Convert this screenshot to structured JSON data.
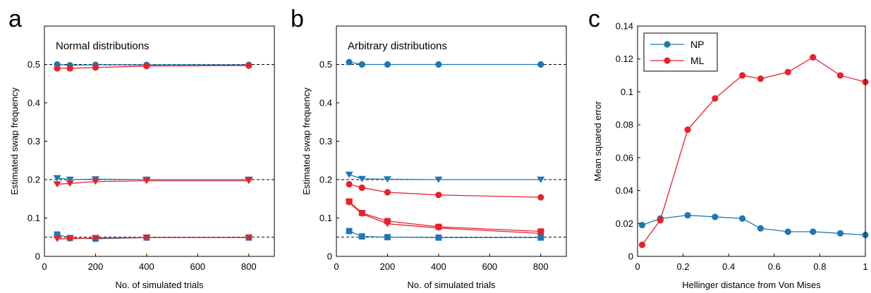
{
  "colors": {
    "np": "#1f77b4",
    "ml": "#e8212b",
    "reference": "#000000",
    "frame": "#000000"
  },
  "chart_data": [
    {
      "type": "line",
      "panel_label": "a",
      "title": "Normal distributions",
      "xlabel": "No. of simulated trials",
      "ylabel": "Estimated swap frequency",
      "xlim": [
        0,
        900
      ],
      "ylim": [
        0,
        0.6
      ],
      "xticks": [
        0,
        200,
        400,
        600,
        800
      ],
      "xtick_labels": [
        "0",
        "200",
        "400",
        "600",
        "800"
      ],
      "yticks": [
        0,
        0.1,
        0.2,
        0.3,
        0.4,
        0.5
      ],
      "ytick_labels": [
        "0",
        "0.1",
        "0.2",
        "0.3",
        "0.4",
        "0.5"
      ],
      "reference_lines": [
        0.5,
        0.2,
        0.05
      ],
      "series": [
        {
          "color": "np",
          "marker": "circle",
          "x": [
            50,
            100,
            200,
            400,
            800
          ],
          "y": [
            0.5,
            0.498,
            0.499,
            0.499,
            0.499
          ]
        },
        {
          "color": "ml",
          "marker": "circle",
          "x": [
            50,
            100,
            200,
            400,
            800
          ],
          "y": [
            0.49,
            0.49,
            0.492,
            0.496,
            0.497
          ]
        },
        {
          "color": "np",
          "marker": "triangle",
          "x": [
            50,
            100,
            200,
            400,
            800
          ],
          "y": [
            0.204,
            0.2,
            0.201,
            0.2,
            0.2
          ]
        },
        {
          "color": "ml",
          "marker": "triangle",
          "x": [
            50,
            100,
            200,
            400,
            800
          ],
          "y": [
            0.188,
            0.19,
            0.195,
            0.197,
            0.197
          ]
        },
        {
          "color": "np",
          "marker": "square",
          "x": [
            50,
            100,
            200,
            400,
            800
          ],
          "y": [
            0.057,
            0.048,
            0.046,
            0.049,
            0.049
          ]
        },
        {
          "color": "ml",
          "marker": "triangle",
          "x": [
            50,
            100,
            200,
            400,
            800
          ],
          "y": [
            0.046,
            0.046,
            0.048,
            0.049,
            0.049
          ]
        }
      ]
    },
    {
      "type": "line",
      "panel_label": "b",
      "title": "Arbitrary distributions",
      "xlabel": "No. of simulated trials",
      "ylabel": "Estimated swap frequency",
      "xlim": [
        0,
        900
      ],
      "ylim": [
        0,
        0.6
      ],
      "xticks": [
        0,
        200,
        400,
        600,
        800
      ],
      "xtick_labels": [
        "0",
        "200",
        "400",
        "600",
        "800"
      ],
      "yticks": [
        0,
        0.1,
        0.2,
        0.3,
        0.4,
        0.5
      ],
      "ytick_labels": [
        "0",
        "0.1",
        "0.2",
        "0.3",
        "0.4",
        "0.5"
      ],
      "reference_lines": [
        0.5,
        0.2,
        0.05
      ],
      "series": [
        {
          "color": "np",
          "marker": "circle",
          "x": [
            50,
            100,
            200,
            400,
            800
          ],
          "y": [
            0.506,
            0.5,
            0.5,
            0.5,
            0.5
          ]
        },
        {
          "color": "np",
          "marker": "triangle",
          "x": [
            50,
            100,
            200,
            400,
            800
          ],
          "y": [
            0.213,
            0.202,
            0.201,
            0.2,
            0.2
          ]
        },
        {
          "color": "ml",
          "marker": "circle",
          "x": [
            50,
            100,
            200,
            400,
            800
          ],
          "y": [
            0.188,
            0.179,
            0.167,
            0.16,
            0.154
          ]
        },
        {
          "color": "ml",
          "marker": "square",
          "x": [
            50,
            100,
            200,
            400,
            800
          ],
          "y": [
            0.143,
            0.113,
            0.092,
            0.077,
            0.065
          ]
        },
        {
          "color": "ml",
          "marker": "triangle",
          "x": [
            50,
            100,
            200,
            400,
            800
          ],
          "y": [
            0.14,
            0.111,
            0.085,
            0.074,
            0.06
          ]
        },
        {
          "color": "np",
          "marker": "square",
          "x": [
            50,
            100,
            200,
            400,
            800
          ],
          "y": [
            0.066,
            0.052,
            0.05,
            0.049,
            0.049
          ]
        }
      ]
    },
    {
      "type": "line",
      "panel_label": "c",
      "title": "",
      "xlabel": "Hellinger distance from Von Mises",
      "ylabel": "Mean squared error",
      "xlim": [
        0,
        1
      ],
      "ylim": [
        0,
        0.14
      ],
      "xticks": [
        0,
        0.2,
        0.4,
        0.6,
        0.8,
        1
      ],
      "xtick_labels": [
        "0",
        "0.2",
        "0.4",
        "0.6",
        "0.8",
        "1"
      ],
      "yticks": [
        0,
        0.02,
        0.04,
        0.06,
        0.08,
        0.1,
        0.12,
        0.14
      ],
      "ytick_labels": [
        "0",
        "0.02",
        "0.04",
        "0.06",
        "0.08",
        "0.1",
        "0.12",
        "0.14"
      ],
      "legend": {
        "position": "top-left",
        "entries": [
          {
            "label": "NP",
            "color": "np"
          },
          {
            "label": "ML",
            "color": "ml"
          }
        ]
      },
      "series": [
        {
          "name": "NP",
          "color": "np",
          "marker": "circle",
          "x": [
            0.02,
            0.1,
            0.22,
            0.34,
            0.46,
            0.54,
            0.66,
            0.77,
            0.89,
            1.0
          ],
          "y": [
            0.019,
            0.023,
            0.025,
            0.024,
            0.023,
            0.017,
            0.015,
            0.015,
            0.014,
            0.013
          ]
        },
        {
          "name": "ML",
          "color": "ml",
          "marker": "circle",
          "x": [
            0.02,
            0.1,
            0.22,
            0.34,
            0.46,
            0.54,
            0.66,
            0.77,
            0.89,
            1.0
          ],
          "y": [
            0.007,
            0.022,
            0.077,
            0.096,
            0.11,
            0.108,
            0.112,
            0.121,
            0.11,
            0.106
          ]
        }
      ]
    }
  ]
}
